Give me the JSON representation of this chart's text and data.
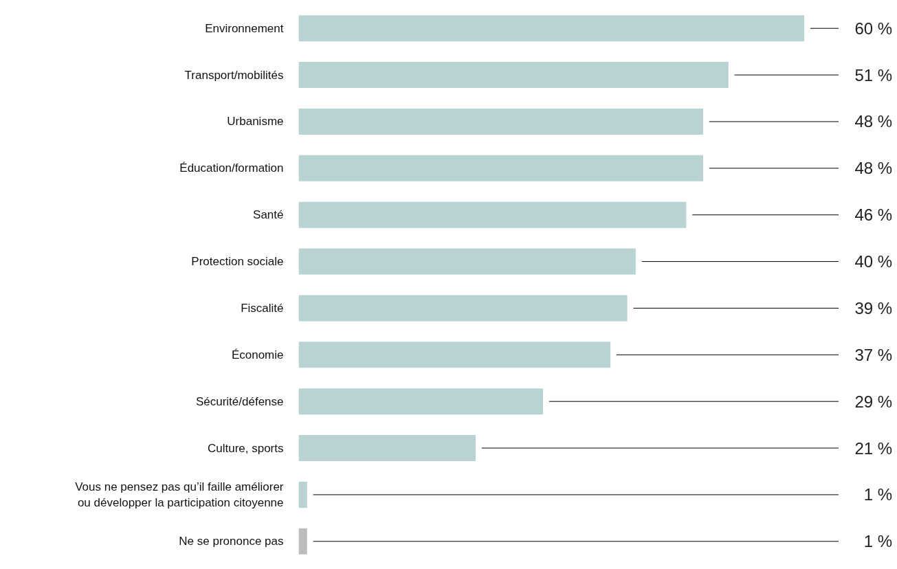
{
  "chart_data": {
    "type": "bar",
    "orientation": "horizontal",
    "categories": [
      "Environnement",
      "Transport/mobilités",
      "Urbanisme",
      "Éducation/formation",
      "Santé",
      "Protection sociale",
      "Fiscalité",
      "Économie",
      "Sécurité/défense",
      "Culture, sports",
      "Vous ne pensez pas qu’il faille améliorer\nou développer la participation citoyenne",
      "Ne se prononce pas"
    ],
    "values": [
      60,
      51,
      48,
      48,
      46,
      40,
      39,
      37,
      29,
      21,
      1,
      1
    ],
    "colors": [
      "#b9d3d3",
      "#b9d3d3",
      "#b9d3d3",
      "#b9d3d3",
      "#b9d3d3",
      "#b9d3d3",
      "#b9d3d3",
      "#b9d3d3",
      "#b9d3d3",
      "#b9d3d3",
      "#b9d3d3",
      "#bcbcbc"
    ],
    "value_labels": [
      "60 %",
      "51 %",
      "48 %",
      "48 %",
      "46 %",
      "40 %",
      "39 %",
      "37 %",
      "29 %",
      "21 %",
      "1 %",
      "1 %"
    ],
    "grid": false
  }
}
